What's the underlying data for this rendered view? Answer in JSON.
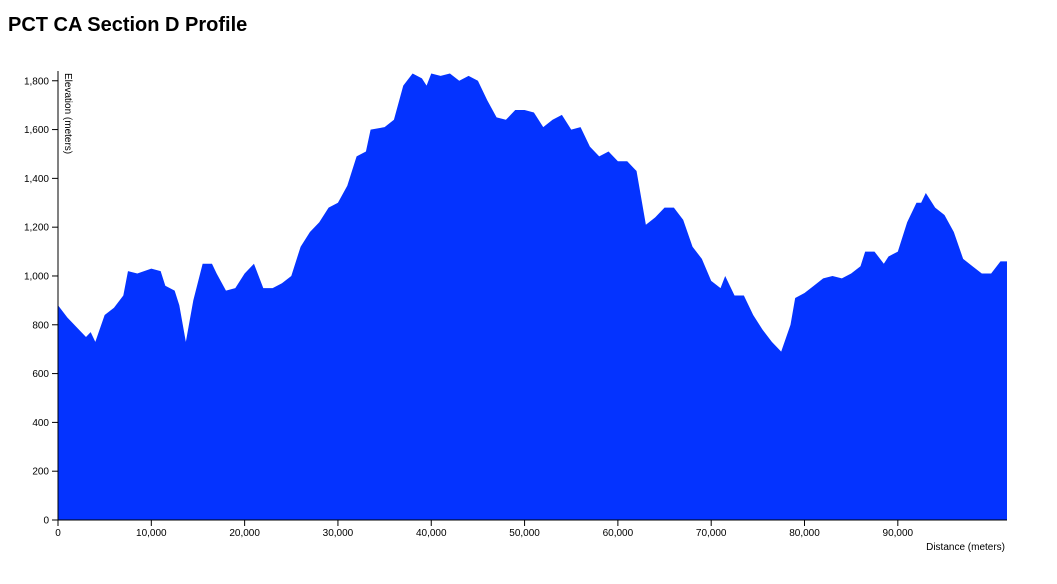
{
  "chart_data": {
    "type": "area",
    "title": "PCT CA Section D Profile",
    "x_label": "Distance (meters)",
    "y_label": "Elevation (meters)",
    "color": "#0433ff",
    "x": [
      0,
      1000,
      2000,
      3000,
      3500,
      4000,
      5000,
      6000,
      7000,
      7500,
      8500,
      10000,
      11000,
      11500,
      12500,
      13000,
      13700,
      14500,
      15500,
      16500,
      17000,
      18000,
      19000,
      20000,
      21000,
      22000,
      23000,
      24000,
      25000,
      26000,
      27000,
      28000,
      29000,
      30000,
      31000,
      32000,
      33000,
      33500,
      35000,
      36000,
      37000,
      38000,
      39000,
      39500,
      40000,
      41000,
      42000,
      43000,
      44000,
      45000,
      46000,
      47000,
      48000,
      49000,
      50000,
      51000,
      52000,
      53000,
      54000,
      55000,
      56000,
      57000,
      58000,
      59000,
      60000,
      61000,
      62000,
      63000,
      64000,
      65000,
      66000,
      67000,
      68000,
      69000,
      70000,
      71000,
      71500,
      72500,
      73500,
      74500,
      75500,
      76500,
      77500,
      78500,
      79000,
      80000,
      81000,
      82000,
      83000,
      84000,
      85000,
      86000,
      86500,
      87500,
      88500,
      89000,
      90000,
      91000,
      92000,
      92500,
      93000,
      94000,
      95000,
      96000,
      97000,
      98000,
      99000,
      100000,
      101000,
      101700
    ],
    "y": [
      880,
      830,
      790,
      750,
      770,
      730,
      840,
      870,
      920,
      1020,
      1010,
      1030,
      1020,
      960,
      940,
      880,
      730,
      900,
      1050,
      1050,
      1010,
      940,
      950,
      1010,
      1050,
      950,
      950,
      970,
      1000,
      1120,
      1180,
      1220,
      1280,
      1300,
      1370,
      1490,
      1510,
      1600,
      1610,
      1640,
      1780,
      1830,
      1810,
      1780,
      1830,
      1820,
      1830,
      1800,
      1820,
      1800,
      1720,
      1650,
      1640,
      1680,
      1680,
      1670,
      1610,
      1640,
      1660,
      1600,
      1610,
      1530,
      1490,
      1510,
      1470,
      1470,
      1430,
      1210,
      1240,
      1280,
      1280,
      1230,
      1120,
      1070,
      980,
      950,
      1000,
      920,
      920,
      840,
      780,
      730,
      690,
      800,
      910,
      930,
      960,
      990,
      1000,
      990,
      1010,
      1040,
      1100,
      1100,
      1050,
      1080,
      1100,
      1220,
      1300,
      1300,
      1340,
      1280,
      1250,
      1180,
      1070,
      1040,
      1010,
      1010,
      1060,
      1060
    ],
    "xlim": [
      0,
      101700
    ],
    "ylim": [
      0,
      1840
    ],
    "xticks": [
      0,
      {
        "value": 10000,
        "label": "10,000"
      },
      {
        "value": 20000,
        "label": "20,000"
      },
      {
        "value": 30000,
        "label": "30,000"
      },
      {
        "value": 40000,
        "label": "40,000"
      },
      {
        "value": 50000,
        "label": "50,000"
      },
      {
        "value": 60000,
        "label": "60,000"
      },
      {
        "value": 70000,
        "label": "70,000"
      },
      {
        "value": 80000,
        "label": "80,000"
      },
      {
        "value": 90000,
        "label": "90,000"
      }
    ],
    "yticks": [
      0,
      200,
      400,
      600,
      800,
      {
        "value": 1000,
        "label": "1,000"
      },
      {
        "value": 1200,
        "label": "1,200"
      },
      {
        "value": 1400,
        "label": "1,400"
      },
      {
        "value": 1600,
        "label": "1,600"
      },
      {
        "value": 1800,
        "label": "1,800"
      }
    ]
  }
}
